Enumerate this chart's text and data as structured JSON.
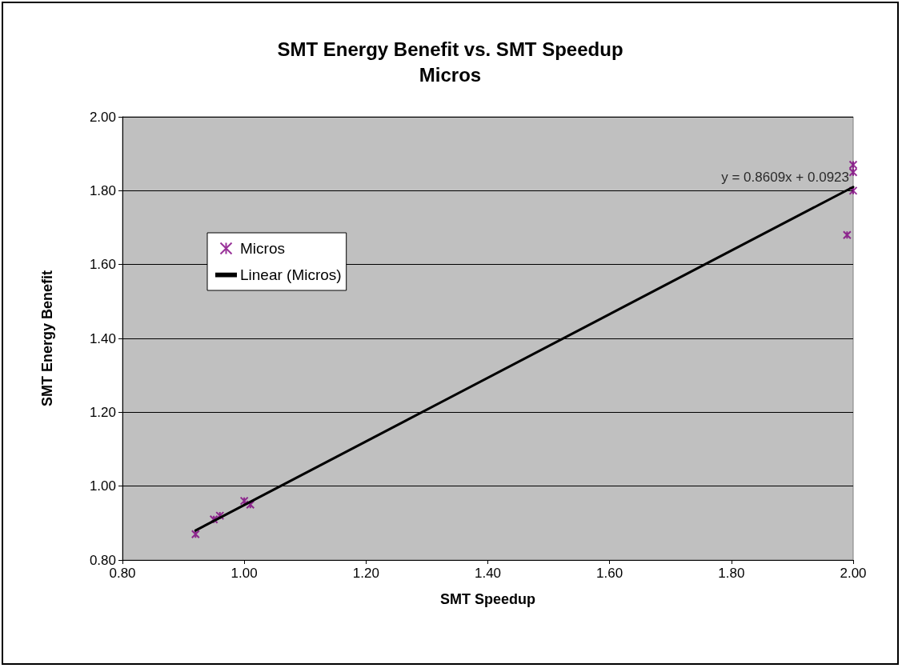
{
  "chart_data": {
    "type": "scatter",
    "title": "SMT Energy Benefit vs. SMT Speedup",
    "subtitle": "Micros",
    "xlabel": "SMT Speedup",
    "ylabel": "SMT Energy Benefit",
    "series": [
      {
        "name": "Micros",
        "color": "#800080",
        "marker": "cross",
        "x": [
          0.92,
          0.95,
          0.96,
          1.0,
          1.01,
          1.99,
          2.0,
          2.0,
          2.0
        ],
        "values": [
          0.87,
          0.91,
          0.92,
          0.96,
          0.95,
          1.68,
          1.87,
          1.85,
          1.8
        ]
      },
      {
        "name": "Linear (Micros)",
        "type": "line",
        "color": "#000000",
        "marker": "none",
        "x": [
          0.92,
          2.0
        ],
        "values": [
          0.88,
          1.81
        ]
      }
    ],
    "annotations": [
      {
        "text": "y = 0.8609x + 0.0923",
        "x": 2.0,
        "y": 1.81
      }
    ],
    "xlim": [
      0.8,
      2.0
    ],
    "xticks": [
      {
        "value": 0.8,
        "label": "0.80"
      },
      {
        "value": 1.0,
        "label": "1.00"
      },
      {
        "value": 1.2,
        "label": "1.20"
      },
      {
        "value": 1.4,
        "label": "1.40"
      },
      {
        "value": 1.6,
        "label": "1.60"
      },
      {
        "value": 1.8,
        "label": "1.80"
      },
      {
        "value": 2.0,
        "label": "2.00"
      }
    ],
    "ylim": [
      0.8,
      2.0
    ],
    "yticks": [
      {
        "value": 0.8,
        "label": "0.80"
      },
      {
        "value": 1.0,
        "label": "1.00"
      },
      {
        "value": 1.2,
        "label": "1.20"
      },
      {
        "value": 1.4,
        "label": "1.40"
      },
      {
        "value": 1.6,
        "label": "1.60"
      },
      {
        "value": 1.8,
        "label": "1.80"
      },
      {
        "value": 2.0,
        "label": "2.00"
      }
    ],
    "grid": "y",
    "legend": "left"
  }
}
